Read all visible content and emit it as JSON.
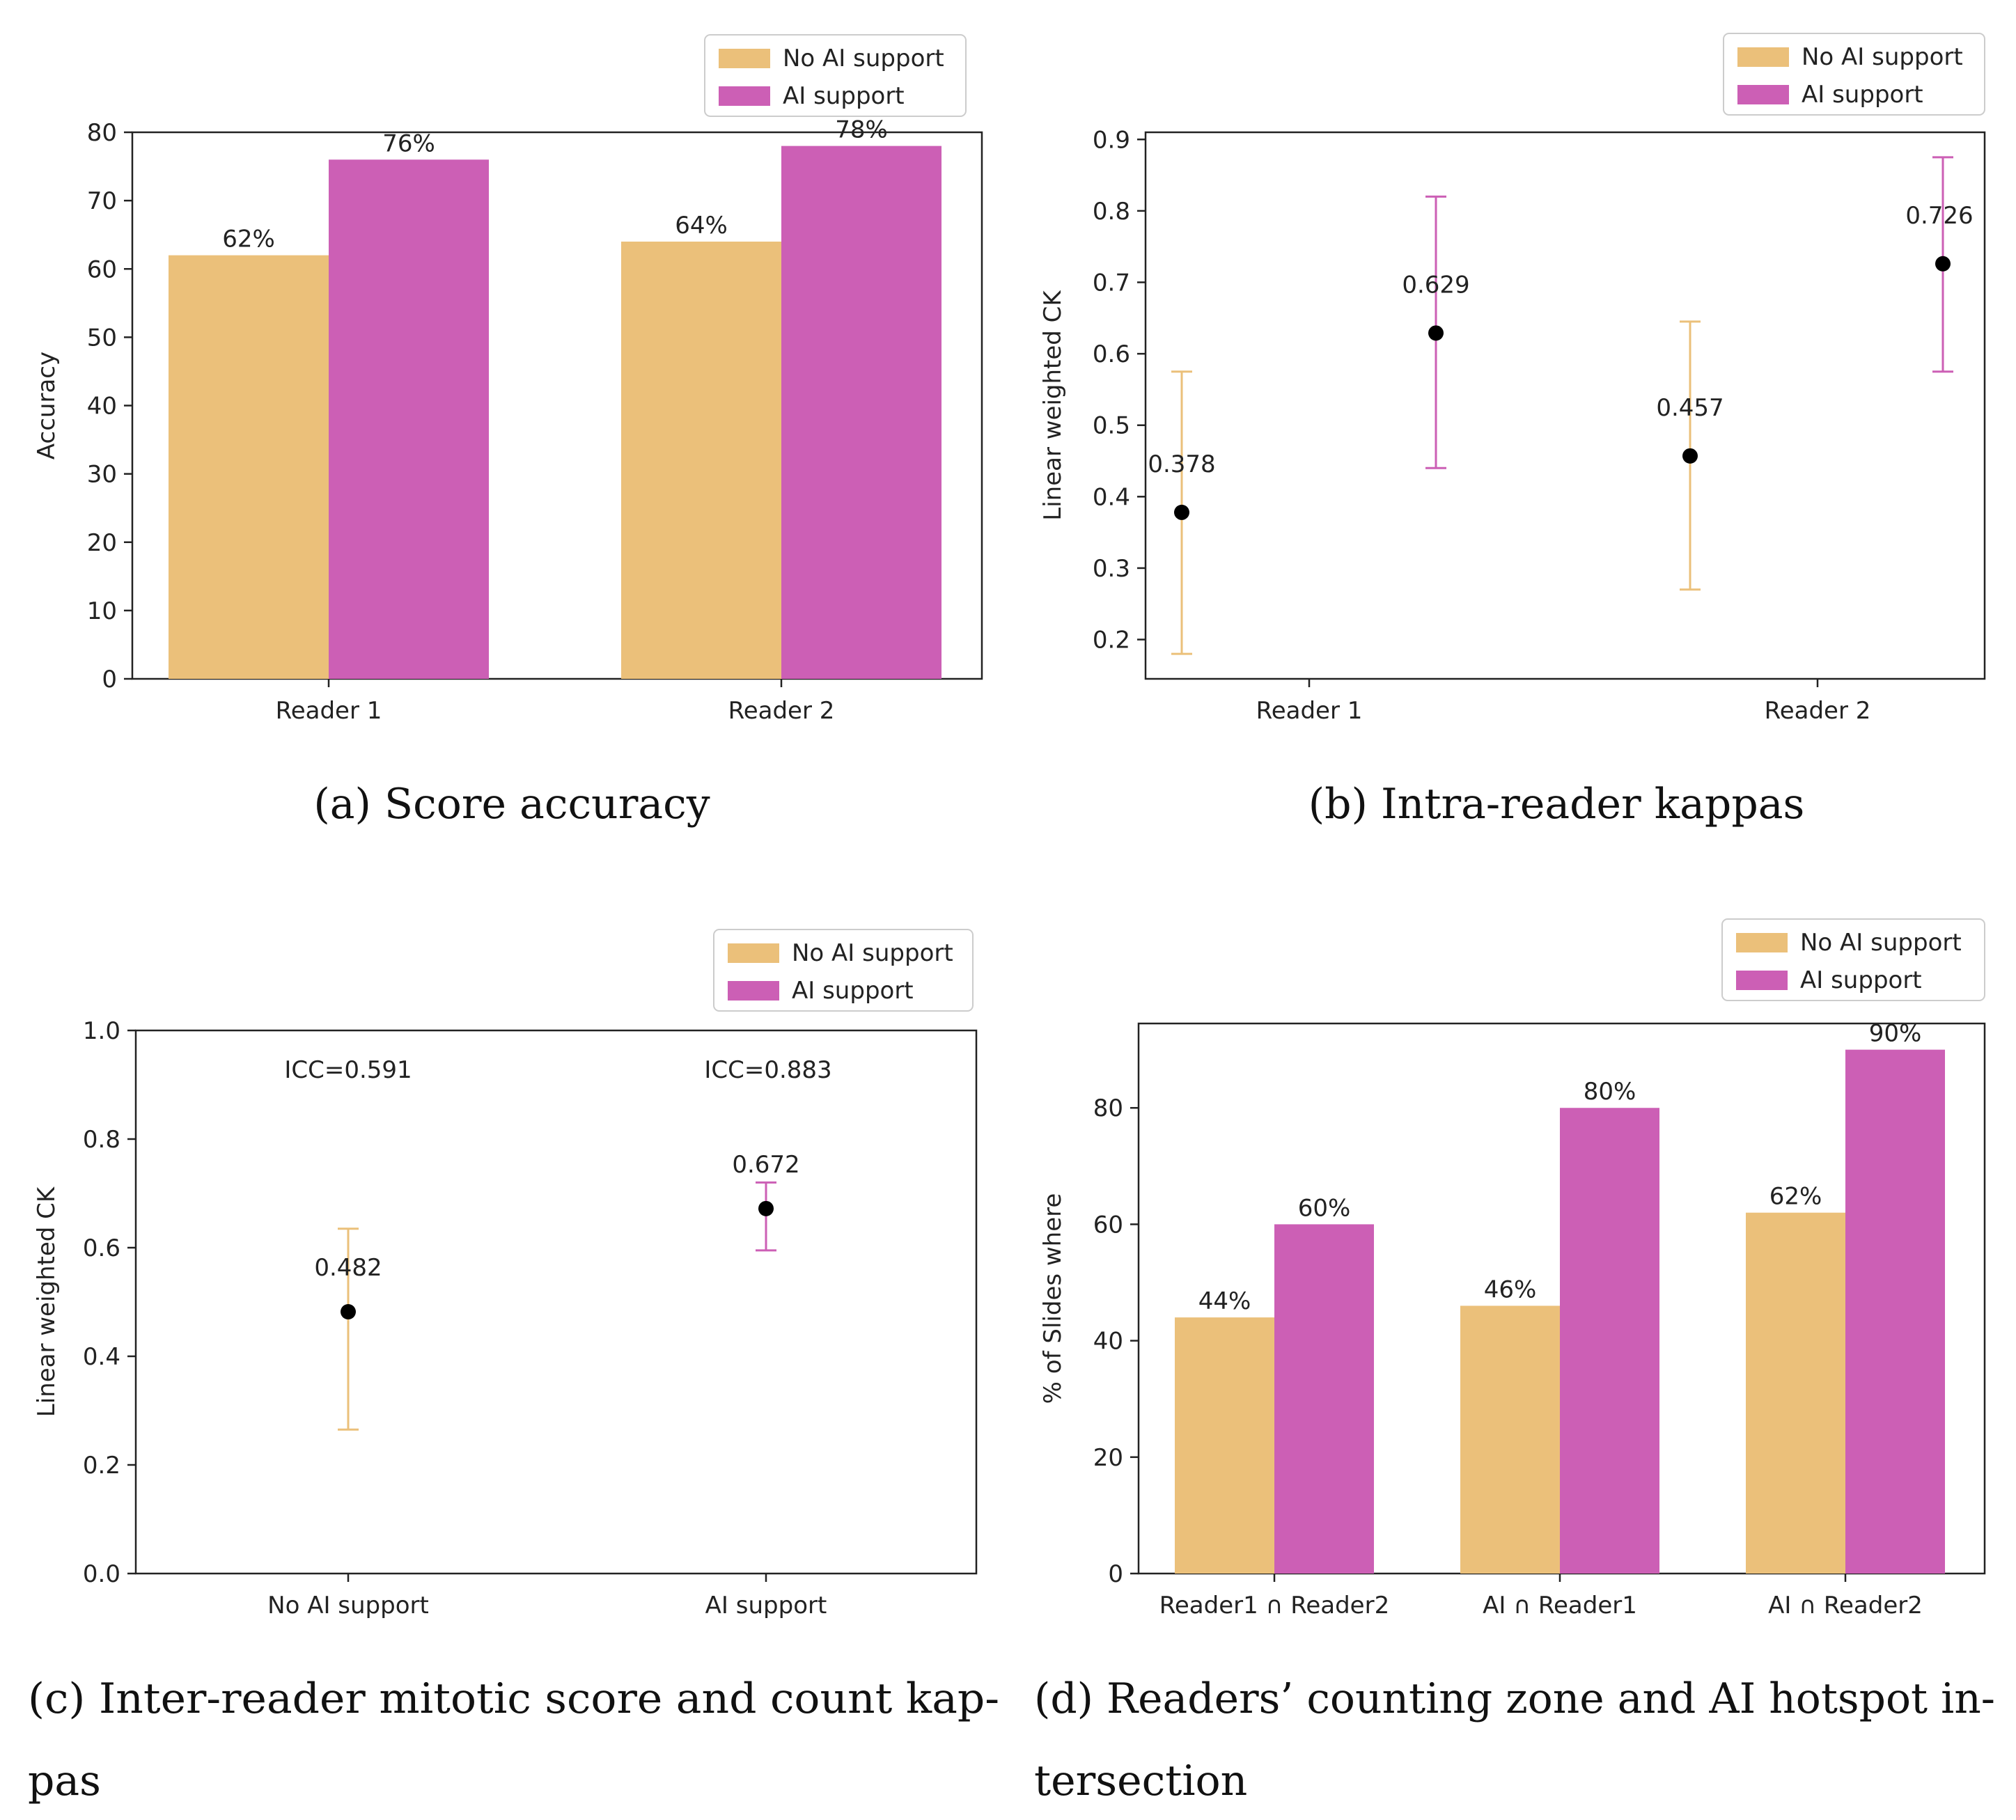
{
  "colors": {
    "no_ai": "#EBC07A",
    "ai": "#CC5FB5",
    "point": "#000000"
  },
  "captions": {
    "a": "(a) Score accuracy",
    "b": "(b) Intra-reader kappas",
    "c_line1": "(c) Inter-reader mitotic score and count kap-",
    "c_line2": "pas",
    "d_line1": "(d) Readers’ counting zone and AI hotspot in-",
    "d_line2": "tersection"
  },
  "chart_data": [
    {
      "id": "a",
      "type": "bar",
      "title": "",
      "xlabel": "",
      "ylabel": "Accuracy",
      "categories": [
        "Reader 1",
        "Reader 2"
      ],
      "series": [
        {
          "name": "No AI support",
          "values": [
            62,
            64
          ],
          "labels": [
            "62%",
            "64%"
          ]
        },
        {
          "name": "AI support",
          "values": [
            76,
            78
          ],
          "labels": [
            "76%",
            "78%"
          ]
        }
      ],
      "ylim": [
        0,
        80
      ],
      "yticks": [
        0,
        10,
        20,
        30,
        40,
        50,
        60,
        70,
        80
      ],
      "legend": "top-right outside"
    },
    {
      "id": "b",
      "type": "scatter",
      "title": "",
      "xlabel": "",
      "ylabel": "Linear weighted CK",
      "categories": [
        "Reader 1",
        "Reader 2"
      ],
      "points": [
        {
          "series": "No AI support",
          "category": "Reader 1",
          "value": 0.378,
          "label": "0.378",
          "err": [
            0.18,
            0.575
          ]
        },
        {
          "series": "AI support",
          "category": "Reader 1",
          "value": 0.629,
          "label": "0.629",
          "err": [
            0.44,
            0.82
          ]
        },
        {
          "series": "No AI support",
          "category": "Reader 2",
          "value": 0.457,
          "label": "0.457",
          "err": [
            0.27,
            0.645
          ]
        },
        {
          "series": "AI support",
          "category": "Reader 2",
          "value": 0.726,
          "label": "0.726",
          "err": [
            0.575,
            0.875
          ]
        }
      ],
      "ylim": [
        0.145,
        0.91
      ],
      "yticks": [
        0.2,
        0.3,
        0.4,
        0.5,
        0.6,
        0.7,
        0.8,
        0.9
      ],
      "legend_entries": [
        "No AI support",
        "AI support"
      ],
      "legend": "top-right outside"
    },
    {
      "id": "c",
      "type": "scatter",
      "title": "",
      "xlabel": "",
      "ylabel": "Linear weighted CK",
      "categories": [
        "No AI support",
        "AI support"
      ],
      "points": [
        {
          "series": "No AI support",
          "category": "No AI support",
          "value": 0.482,
          "label": "0.482",
          "err": [
            0.265,
            0.635
          ]
        },
        {
          "series": "AI support",
          "category": "AI support",
          "value": 0.672,
          "label": "0.672",
          "err": [
            0.595,
            0.72
          ]
        }
      ],
      "annotations": [
        "ICC=0.591",
        "ICC=0.883"
      ],
      "ylim": [
        0.0,
        1.0
      ],
      "yticks": [
        0.0,
        0.2,
        0.4,
        0.6,
        0.8,
        1.0
      ],
      "legend_entries": [
        "No AI support",
        "AI support"
      ],
      "legend": "top-right outside"
    },
    {
      "id": "d",
      "type": "bar",
      "title": "",
      "xlabel": "",
      "ylabel": "% of Slides where",
      "categories": [
        "Reader1 ∩ Reader2",
        "AI ∩ Reader1",
        "AI ∩ Reader2"
      ],
      "series": [
        {
          "name": "No AI support",
          "values": [
            44,
            46,
            62
          ],
          "labels": [
            "44%",
            "46%",
            "62%"
          ]
        },
        {
          "name": "AI support",
          "values": [
            60,
            80,
            90
          ],
          "labels": [
            "60%",
            "80%",
            "90%"
          ]
        }
      ],
      "ylim": [
        0,
        94.5
      ],
      "yticks": [
        0,
        20,
        40,
        60,
        80
      ],
      "legend": "top-right outside"
    }
  ]
}
